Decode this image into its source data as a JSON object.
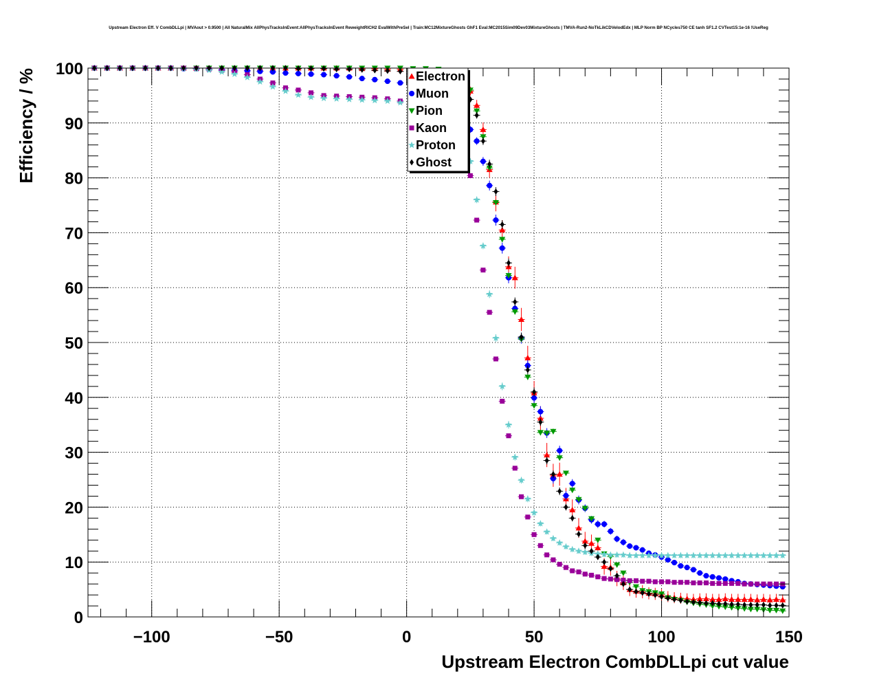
{
  "chart_data": {
    "type": "scatter",
    "title": "Upstream Electron Eff. V CombDLLpi | MVAout > 0.9500 | All NaturalMix AllPhysTracksInEvent:AllPhysTracksInEvent ReweightRICH2 EvalWithPreSel | Train:MC12MixtureGhosts GhF1 Eval:MC2015Sim09Dev03MixtureGhosts | TMVA-Run2-NoTkLikCDVelodEdx | MLP Norm BP NCycles750 CE tanh SF1.2 CVTest15:1e-16 !UseReg",
    "xlabel": "Upstream Electron CombDLLpi cut value",
    "ylabel": "Efficiency / %",
    "xlim": [
      -125,
      150
    ],
    "ylim": [
      0,
      100
    ],
    "xticks": [
      -100,
      -50,
      0,
      50,
      100,
      150
    ],
    "xtick_labels": [
      "−100",
      "−50",
      "0",
      "50",
      "100",
      "150"
    ],
    "yticks": [
      0,
      10,
      20,
      30,
      40,
      50,
      60,
      70,
      80,
      90,
      100
    ],
    "ytick_labels": [
      "0",
      "10",
      "20",
      "30",
      "40",
      "50",
      "60",
      "70",
      "80",
      "90",
      "100"
    ],
    "grid": true,
    "legend_position": "top-center",
    "x": [
      -122.5,
      -117.5,
      -112.5,
      -107.5,
      -102.5,
      -97.5,
      -92.5,
      -87.5,
      -82.5,
      -77.5,
      -72.5,
      -67.5,
      -62.5,
      -57.5,
      -52.5,
      -47.5,
      -42.5,
      -37.5,
      -32.5,
      -27.5,
      -22.5,
      -17.5,
      -12.5,
      -7.5,
      -2.5,
      2.5,
      7.5,
      12.5,
      17.5,
      22.5,
      25.0,
      27.5,
      30.0,
      32.5,
      35.0,
      37.5,
      40.0,
      42.5,
      45.0,
      47.5,
      50.0,
      52.5,
      55.0,
      57.5,
      60.0,
      62.5,
      65.0,
      67.5,
      70.0,
      72.5,
      75.0,
      77.5,
      80.0,
      82.5,
      85.0,
      87.5,
      90.0,
      92.5,
      95.0,
      97.5,
      100.0,
      102.5,
      105.0,
      107.5,
      110.0,
      112.5,
      115.0,
      117.5,
      120.0,
      122.5,
      125.0,
      127.5,
      130.0,
      132.5,
      135.0,
      137.5,
      140.0,
      142.5,
      145.0,
      147.5
    ],
    "series": [
      {
        "name": "Electron",
        "marker": "triangle-up",
        "color": "#ff0000",
        "values": [
          100.0,
          100.0,
          100.0,
          100.0,
          100.0,
          100.0,
          100.0,
          100.0,
          100.0,
          100.0,
          100.0,
          100.0,
          100.0,
          100.0,
          100.0,
          100.0,
          100.0,
          100.0,
          100.0,
          100.0,
          100.0,
          99.9,
          99.9,
          99.8,
          99.8,
          99.7,
          99.6,
          99.4,
          98.8,
          97.2,
          95.8,
          93.2,
          88.8,
          81.5,
          75.6,
          70.5,
          63.8,
          61.8,
          54.2,
          47.2,
          40.8,
          36.2,
          29.5,
          25.8,
          26.0,
          21.5,
          19.5,
          16.2,
          13.8,
          13.4,
          12.6,
          9.2,
          9.0,
          7.0,
          6.2,
          5.0,
          4.7,
          4.6,
          4.3,
          4.2,
          4.0,
          3.7,
          3.5,
          3.4,
          3.3,
          3.2,
          3.3,
          3.3,
          3.2,
          3.2,
          3.3,
          3.2,
          3.2,
          3.2,
          3.2,
          3.1,
          3.2,
          3.1,
          3.2,
          3.1
        ],
        "errors": [
          0.1,
          0.1,
          0.1,
          0.1,
          0.1,
          0.1,
          0.1,
          0.1,
          0.1,
          0.1,
          0.1,
          0.1,
          0.1,
          0.1,
          0.1,
          0.1,
          0.1,
          0.1,
          0.1,
          0.1,
          0.1,
          0.1,
          0.1,
          0.2,
          0.2,
          0.2,
          0.3,
          0.3,
          0.4,
          0.6,
          0.8,
          1.0,
          1.3,
          1.5,
          1.7,
          1.8,
          1.9,
          2.0,
          2.1,
          2.2,
          2.2,
          2.2,
          2.2,
          2.1,
          2.1,
          2.0,
          1.9,
          1.8,
          1.7,
          1.6,
          1.6,
          1.5,
          1.5,
          1.4,
          1.3,
          1.2,
          1.2,
          1.2,
          1.1,
          1.1,
          1.1,
          1.0,
          1.0,
          1.0,
          1.0,
          1.0,
          1.0,
          1.0,
          1.0,
          1.0,
          1.0,
          1.0,
          1.0,
          1.0,
          1.0,
          1.0,
          1.0,
          1.0,
          1.0,
          1.0
        ]
      },
      {
        "name": "Muon",
        "marker": "circle",
        "color": "#0000ff",
        "values": [
          100.0,
          100.0,
          100.0,
          100.0,
          100.0,
          100.0,
          100.0,
          99.9,
          99.9,
          99.8,
          99.7,
          99.6,
          99.5,
          99.4,
          99.3,
          99.1,
          99.0,
          98.9,
          98.8,
          98.6,
          98.4,
          98.1,
          97.9,
          97.6,
          97.3,
          96.8,
          96.3,
          95.6,
          94.5,
          91.7,
          88.8,
          86.7,
          83.0,
          78.6,
          72.3,
          67.2,
          61.8,
          56.2,
          50.8,
          45.8,
          39.9,
          37.4,
          33.5,
          25.2,
          30.3,
          22.1,
          24.3,
          21.3,
          19.8,
          17.7,
          16.9,
          16.9,
          15.6,
          14.2,
          13.6,
          12.9,
          12.6,
          12.2,
          11.6,
          11.3,
          10.9,
          10.4,
          9.9,
          9.3,
          9.0,
          8.6,
          8.0,
          7.5,
          7.3,
          7.1,
          6.9,
          6.6,
          6.4,
          6.1,
          6.0,
          5.9,
          5.8,
          5.7,
          5.6,
          5.5
        ],
        "errors": [
          0.1,
          0.1,
          0.1,
          0.1,
          0.1,
          0.1,
          0.1,
          0.1,
          0.1,
          0.1,
          0.1,
          0.1,
          0.1,
          0.1,
          0.1,
          0.1,
          0.1,
          0.1,
          0.1,
          0.1,
          0.2,
          0.2,
          0.2,
          0.2,
          0.2,
          0.3,
          0.3,
          0.3,
          0.4,
          0.5,
          0.6,
          0.7,
          0.8,
          0.9,
          1.0,
          1.0,
          1.0,
          1.0,
          1.0,
          1.0,
          1.0,
          1.0,
          0.9,
          0.9,
          0.9,
          0.8,
          0.8,
          0.8,
          0.7,
          0.7,
          0.7,
          0.6,
          0.6,
          0.6,
          0.6,
          0.5,
          0.5,
          0.5,
          0.5,
          0.5,
          0.5,
          0.4,
          0.4,
          0.4,
          0.4,
          0.4,
          0.4,
          0.4,
          0.4,
          0.4,
          0.4,
          0.4,
          0.4,
          0.4,
          0.4,
          0.4,
          0.4,
          0.4,
          0.4,
          0.4
        ]
      },
      {
        "name": "Pion",
        "marker": "triangle-down",
        "color": "#009900",
        "values": [
          100.0,
          100.0,
          100.0,
          100.0,
          100.0,
          100.0,
          100.0,
          100.0,
          100.0,
          100.0,
          100.0,
          100.0,
          100.0,
          100.0,
          100.0,
          100.0,
          100.0,
          100.0,
          100.0,
          100.0,
          100.0,
          100.0,
          100.0,
          100.0,
          100.0,
          99.9,
          99.9,
          99.8,
          99.2,
          97.0,
          96.0,
          92.2,
          87.5,
          81.8,
          75.5,
          68.8,
          62.2,
          55.6,
          50.6,
          43.7,
          38.5,
          33.6,
          33.5,
          33.8,
          29.0,
          26.2,
          23.1,
          21.4,
          19.8,
          17.9,
          14.0,
          11.5,
          11.0,
          9.5,
          8.0,
          6.3,
          5.5,
          4.8,
          4.6,
          4.4,
          4.2,
          3.5,
          3.2,
          3.0,
          2.7,
          2.5,
          2.3,
          2.2,
          2.0,
          1.9,
          1.8,
          1.7,
          1.6,
          1.5,
          1.4,
          1.4,
          1.3,
          1.2,
          1.2,
          1.1
        ],
        "errors": [
          0.0,
          0.0,
          0.0,
          0.0,
          0.0,
          0.0,
          0.0,
          0.0,
          0.0,
          0.0,
          0.0,
          0.0,
          0.0,
          0.0,
          0.0,
          0.0,
          0.0,
          0.0,
          0.0,
          0.0,
          0.0,
          0.0,
          0.0,
          0.0,
          0.0,
          0.1,
          0.1,
          0.1,
          0.2,
          0.3,
          0.3,
          0.4,
          0.4,
          0.5,
          0.5,
          0.5,
          0.5,
          0.5,
          0.5,
          0.5,
          0.5,
          0.5,
          0.5,
          0.5,
          0.5,
          0.4,
          0.4,
          0.4,
          0.4,
          0.4,
          0.4,
          0.3,
          0.3,
          0.3,
          0.3,
          0.3,
          0.2,
          0.2,
          0.2,
          0.2,
          0.2,
          0.2,
          0.2,
          0.2,
          0.2,
          0.2,
          0.2,
          0.2,
          0.2,
          0.2,
          0.2,
          0.2,
          0.2,
          0.2,
          0.2,
          0.2,
          0.2,
          0.2,
          0.2,
          0.2
        ]
      },
      {
        "name": "Kaon",
        "marker": "square",
        "color": "#990099",
        "values": [
          100.0,
          100.0,
          100.0,
          100.0,
          100.0,
          100.0,
          100.0,
          100.0,
          99.9,
          99.8,
          99.6,
          99.3,
          98.8,
          98.0,
          97.3,
          96.4,
          96.0,
          95.5,
          95.0,
          94.9,
          94.8,
          94.7,
          94.6,
          94.4,
          94.0,
          93.7,
          93.3,
          92.8,
          91.5,
          86.5,
          80.4,
          72.3,
          63.2,
          55.5,
          47.0,
          39.3,
          33.0,
          27.1,
          21.9,
          18.2,
          15.0,
          13.0,
          11.3,
          10.4,
          9.6,
          9.0,
          8.4,
          8.2,
          7.8,
          7.6,
          7.3,
          7.0,
          6.9,
          6.8,
          6.7,
          6.6,
          6.6,
          6.5,
          6.5,
          6.4,
          6.4,
          6.4,
          6.3,
          6.3,
          6.3,
          6.2,
          6.2,
          6.2,
          6.1,
          6.1,
          6.1,
          6.1,
          6.1,
          6.0,
          6.0,
          6.0,
          6.0,
          6.0,
          6.0,
          6.0
        ],
        "errors": [
          0.0,
          0.0,
          0.0,
          0.0,
          0.0,
          0.0,
          0.0,
          0.0,
          0.1,
          0.1,
          0.1,
          0.1,
          0.1,
          0.1,
          0.1,
          0.1,
          0.1,
          0.1,
          0.1,
          0.1,
          0.1,
          0.1,
          0.1,
          0.1,
          0.1,
          0.1,
          0.1,
          0.1,
          0.2,
          0.2,
          0.3,
          0.3,
          0.3,
          0.3,
          0.3,
          0.3,
          0.3,
          0.3,
          0.3,
          0.3,
          0.3,
          0.2,
          0.2,
          0.2,
          0.2,
          0.2,
          0.2,
          0.2,
          0.2,
          0.2,
          0.2,
          0.2,
          0.2,
          0.2,
          0.2,
          0.2,
          0.2,
          0.2,
          0.2,
          0.2,
          0.2,
          0.2,
          0.2,
          0.2,
          0.2,
          0.2,
          0.2,
          0.2,
          0.2,
          0.2,
          0.2,
          0.2,
          0.2,
          0.2,
          0.2,
          0.2,
          0.2,
          0.2,
          0.2,
          0.2
        ]
      },
      {
        "name": "Proton",
        "marker": "star",
        "color": "#66cccc",
        "values": [
          100.0,
          100.0,
          100.0,
          100.0,
          100.0,
          100.0,
          100.0,
          99.9,
          99.8,
          99.6,
          99.3,
          98.9,
          98.3,
          97.5,
          96.6,
          95.8,
          95.1,
          94.7,
          94.5,
          94.4,
          94.3,
          94.2,
          94.1,
          94.0,
          93.7,
          93.4,
          93.0,
          92.3,
          90.5,
          86.0,
          83.0,
          76.0,
          67.6,
          58.8,
          50.8,
          42.0,
          35.0,
          29.1,
          24.9,
          21.5,
          19.0,
          17.0,
          15.5,
          14.3,
          13.5,
          12.8,
          12.3,
          12.0,
          11.8,
          11.6,
          11.5,
          11.4,
          11.3,
          11.3,
          11.3,
          11.2,
          11.2,
          11.2,
          11.2,
          11.2,
          11.2,
          11.2,
          11.2,
          11.2,
          11.2,
          11.2,
          11.2,
          11.2,
          11.2,
          11.2,
          11.2,
          11.2,
          11.2,
          11.2,
          11.2,
          11.2,
          11.2,
          11.2,
          11.2,
          11.2
        ],
        "errors": [
          0.0,
          0.0,
          0.0,
          0.0,
          0.0,
          0.0,
          0.0,
          0.1,
          0.1,
          0.1,
          0.1,
          0.1,
          0.1,
          0.2,
          0.2,
          0.2,
          0.2,
          0.2,
          0.2,
          0.2,
          0.2,
          0.2,
          0.2,
          0.2,
          0.2,
          0.2,
          0.2,
          0.2,
          0.3,
          0.4,
          0.5,
          0.6,
          0.6,
          0.7,
          0.7,
          0.7,
          0.7,
          0.6,
          0.6,
          0.6,
          0.6,
          0.5,
          0.5,
          0.5,
          0.5,
          0.5,
          0.5,
          0.5,
          0.5,
          0.5,
          0.5,
          0.5,
          0.5,
          0.5,
          0.5,
          0.5,
          0.5,
          0.5,
          0.5,
          0.5,
          0.5,
          0.5,
          0.5,
          0.5,
          0.5,
          0.5,
          0.5,
          0.5,
          0.5,
          0.5,
          0.5,
          0.5,
          0.5,
          0.5,
          0.5,
          0.5,
          0.5,
          0.5,
          0.5,
          0.5
        ]
      },
      {
        "name": "Ghost",
        "marker": "diamond",
        "color": "#000000",
        "values": [
          100.0,
          100.0,
          100.0,
          100.0,
          100.0,
          100.0,
          100.0,
          100.0,
          100.0,
          100.0,
          100.0,
          100.0,
          100.0,
          100.0,
          100.0,
          100.0,
          99.9,
          99.9,
          99.9,
          99.8,
          99.8,
          99.7,
          99.6,
          99.5,
          99.4,
          99.2,
          98.9,
          98.5,
          97.6,
          96.0,
          94.3,
          91.4,
          86.7,
          82.5,
          77.5,
          71.5,
          64.5,
          57.4,
          51.0,
          45.0,
          41.0,
          35.5,
          28.5,
          26.0,
          22.9,
          20.0,
          18.0,
          15.1,
          13.0,
          12.0,
          10.9,
          10.0,
          8.8,
          7.5,
          6.0,
          5.0,
          4.6,
          4.4,
          4.2,
          4.0,
          3.7,
          3.4,
          3.2,
          3.0,
          2.8,
          2.7,
          2.6,
          2.5,
          2.5,
          2.4,
          2.4,
          2.3,
          2.3,
          2.2,
          2.2,
          2.2,
          2.2,
          2.1,
          2.1,
          2.1
        ],
        "errors": [
          0.0,
          0.0,
          0.0,
          0.0,
          0.0,
          0.0,
          0.0,
          0.0,
          0.0,
          0.0,
          0.0,
          0.0,
          0.0,
          0.0,
          0.0,
          0.0,
          0.1,
          0.1,
          0.1,
          0.1,
          0.1,
          0.1,
          0.1,
          0.1,
          0.1,
          0.2,
          0.2,
          0.2,
          0.3,
          0.4,
          0.5,
          0.6,
          0.7,
          0.8,
          0.8,
          0.8,
          0.8,
          0.8,
          0.8,
          0.8,
          0.8,
          0.7,
          0.7,
          0.7,
          0.7,
          0.6,
          0.6,
          0.6,
          0.6,
          0.5,
          0.5,
          0.5,
          0.5,
          0.4,
          0.4,
          0.4,
          0.4,
          0.4,
          0.4,
          0.4,
          0.4,
          0.3,
          0.3,
          0.3,
          0.3,
          0.3,
          0.3,
          0.3,
          0.3,
          0.3,
          0.3,
          0.3,
          0.3,
          0.3,
          0.3,
          0.3,
          0.3,
          0.3,
          0.3,
          0.3
        ]
      }
    ]
  }
}
